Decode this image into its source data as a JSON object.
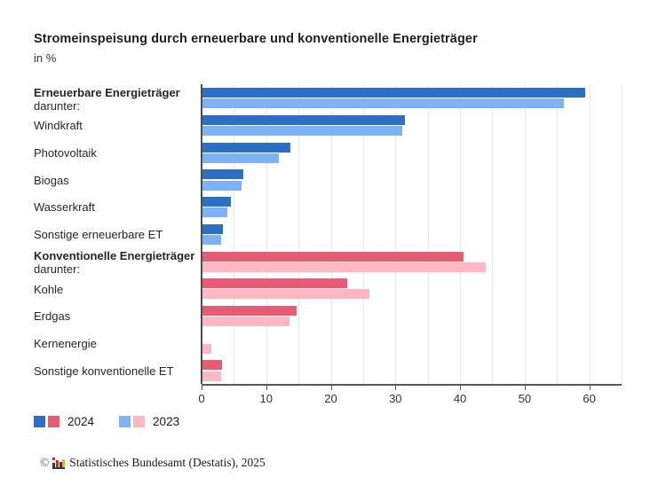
{
  "chart_data": {
    "type": "bar",
    "orientation": "horizontal",
    "title": "Stromeinspeisung durch erneuerbare und konventionelle Energieträger",
    "unit_label": "in %",
    "xlim": [
      0,
      65
    ],
    "x_ticks": [
      0,
      10,
      20,
      30,
      40,
      50,
      60
    ],
    "gridline_step": 5,
    "grid": true,
    "legend_position": "bottom-left",
    "categories": [
      "Erneuerbare Energieträger",
      "Windkraft",
      "Photovoltaik",
      "Biogas",
      "Wasserkraft",
      "Sonstige erneuerbare ET",
      "Konventionelle Energieträger",
      "Kohle",
      "Erdgas",
      "Kernenergie",
      "Sonstige konventionelle ET"
    ],
    "category_group": [
      "renewable",
      "renewable",
      "renewable",
      "renewable",
      "renewable",
      "renewable",
      "conventional",
      "conventional",
      "conventional",
      "conventional",
      "conventional"
    ],
    "group_header_indices": [
      0,
      6
    ],
    "group_header_sub_label": "darunter:",
    "series": [
      {
        "name": "2024",
        "values": [
          59.4,
          31.5,
          13.8,
          6.4,
          4.6,
          3.3,
          40.6,
          22.5,
          14.7,
          0,
          3.1
        ],
        "fill": {
          "renewable": "#2B70C4",
          "conventional": "#E65C72"
        }
      },
      {
        "name": "2023",
        "values": [
          56.0,
          31.0,
          12.0,
          6.2,
          4.0,
          3.0,
          44.0,
          26.0,
          13.6,
          1.5,
          3.0
        ],
        "fill": {
          "renewable": "#7EB2F7",
          "conventional": "#FFB8C1"
        }
      }
    ],
    "colors": {
      "grid": "#e8e8e8",
      "axis": "#595959",
      "zero_line": "#4d4d4d",
      "label_text": "#262626",
      "tick_text": "#333333"
    }
  },
  "footer": {
    "copyright": "©",
    "text": "Statistisches Bundesamt (Destatis), 2025"
  }
}
